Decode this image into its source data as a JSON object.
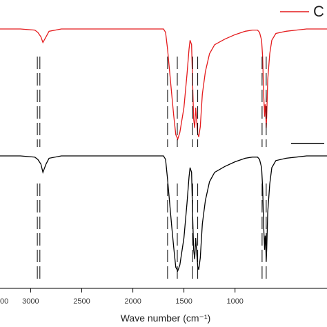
{
  "chart_data": {
    "type": "line",
    "title": "",
    "xlabel": "Wave number (cm⁻¹)",
    "ylabel": "",
    "x_reversed": true,
    "xlim": [
      3300,
      100
    ],
    "x_ticks": [
      {
        "value": 3000,
        "label": "3000"
      },
      {
        "value": 2500,
        "label": "2500"
      },
      {
        "value": 2000,
        "label": "2000"
      },
      {
        "value": 1500,
        "label": "1500"
      },
      {
        "value": 1000,
        "label": "1000"
      }
    ],
    "x_tick_partial_left_label": "00",
    "legend_visible_text": "C",
    "series": [
      {
        "color": "#e41a1c",
        "baseline": 1.0,
        "x": [
          3300,
          3100,
          2960,
          2930,
          2900,
          2880,
          2850,
          2820,
          2700,
          2400,
          2000,
          1800,
          1700,
          1680,
          1660,
          1640,
          1620,
          1600,
          1580,
          1560,
          1540,
          1500,
          1470,
          1450,
          1440,
          1425,
          1415,
          1405,
          1395,
          1385,
          1375,
          1365,
          1355,
          1340,
          1320,
          1290,
          1250,
          1200,
          1100,
          1000,
          900,
          830,
          780,
          760,
          740,
          730,
          720,
          710,
          705,
          700,
          695,
          690,
          680,
          660,
          640,
          600,
          500,
          400,
          300,
          200,
          100
        ],
        "y": [
          1.0,
          1.0,
          0.99,
          0.97,
          0.93,
          0.88,
          0.93,
          0.98,
          1.0,
          1.0,
          1.0,
          1.0,
          1.0,
          0.97,
          0.82,
          0.62,
          0.42,
          0.23,
          0.06,
          0.02,
          0.08,
          0.3,
          0.6,
          0.82,
          0.9,
          0.86,
          0.52,
          0.2,
          0.12,
          0.3,
          0.18,
          0.07,
          0.04,
          0.13,
          0.42,
          0.62,
          0.78,
          0.86,
          0.91,
          0.95,
          0.98,
          0.99,
          0.99,
          0.97,
          0.9,
          0.75,
          0.42,
          0.22,
          0.33,
          0.3,
          0.12,
          0.22,
          0.55,
          0.78,
          0.9,
          0.96,
          0.98,
          0.99,
          1.0,
          1.0,
          1.0
        ]
      },
      {
        "color": "#000000",
        "baseline": 0.0,
        "x": [
          3300,
          3100,
          2960,
          2930,
          2900,
          2880,
          2850,
          2820,
          2700,
          2400,
          2000,
          1800,
          1700,
          1680,
          1660,
          1640,
          1620,
          1600,
          1580,
          1560,
          1540,
          1500,
          1470,
          1450,
          1440,
          1425,
          1415,
          1405,
          1395,
          1385,
          1375,
          1365,
          1355,
          1340,
          1320,
          1290,
          1250,
          1200,
          1100,
          1000,
          900,
          830,
          780,
          760,
          740,
          730,
          720,
          710,
          705,
          700,
          695,
          690,
          680,
          660,
          640,
          600,
          500,
          400,
          300,
          200,
          100
        ],
        "y": [
          1.0,
          1.0,
          0.99,
          0.97,
          0.93,
          0.86,
          0.93,
          0.98,
          1.0,
          1.0,
          1.0,
          1.0,
          1.0,
          0.97,
          0.8,
          0.6,
          0.4,
          0.22,
          0.05,
          0.02,
          0.07,
          0.3,
          0.6,
          0.82,
          0.9,
          0.86,
          0.5,
          0.2,
          0.12,
          0.3,
          0.18,
          0.06,
          0.03,
          0.13,
          0.42,
          0.62,
          0.78,
          0.86,
          0.91,
          0.95,
          0.98,
          0.99,
          0.99,
          0.97,
          0.9,
          0.73,
          0.4,
          0.2,
          0.32,
          0.28,
          0.1,
          0.2,
          0.52,
          0.76,
          0.9,
          0.96,
          0.98,
          0.99,
          1.0,
          1.0,
          1.0
        ]
      }
    ],
    "peak_markers": [
      {
        "series": 0,
        "x": 2935
      },
      {
        "series": 0,
        "x": 2910
      },
      {
        "series": 0,
        "x": 1660
      },
      {
        "series": 0,
        "x": 1565
      },
      {
        "series": 0,
        "x": 1415
      },
      {
        "series": 0,
        "x": 1365
      },
      {
        "series": 0,
        "x": 735
      },
      {
        "series": 0,
        "x": 695
      },
      {
        "series": 1,
        "x": 2935
      },
      {
        "series": 1,
        "x": 2910
      },
      {
        "series": 1,
        "x": 1660
      },
      {
        "series": 1,
        "x": 1565
      },
      {
        "series": 1,
        "x": 1415
      },
      {
        "series": 1,
        "x": 1365
      },
      {
        "series": 1,
        "x": 735
      },
      {
        "series": 1,
        "x": 695
      }
    ]
  }
}
